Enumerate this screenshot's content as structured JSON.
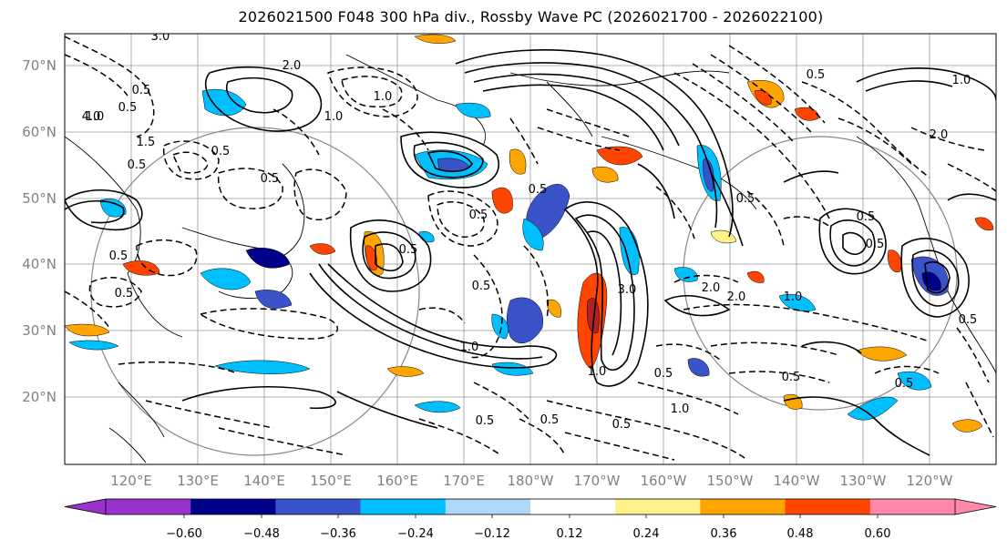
{
  "title": "2026021500 F048 300 hPa div., Rossby Wave PC (2026021700 - 2026022100)",
  "lat_ticks": [
    "70°N",
    "60°N",
    "50°N",
    "40°N",
    "30°N",
    "20°N"
  ],
  "lon_ticks": [
    "120°E",
    "130°E",
    "140°E",
    "150°E",
    "160°E",
    "170°E",
    "180°W",
    "170°W",
    "160°W",
    "150°W",
    "140°W",
    "130°W",
    "120°W"
  ],
  "map_extent": {
    "lon_min": 113,
    "lon_max": 253,
    "lat_min": 10,
    "lat_max": 75
  },
  "colorbar": {
    "bins": [
      {
        "color": "#9932cc"
      },
      {
        "color": "#00008b"
      },
      {
        "color": "#3a53c8"
      },
      {
        "color": "#00bfff"
      },
      {
        "color": "#add8fa"
      },
      {
        "color": "#ffffff"
      },
      {
        "color": "#fff08a"
      },
      {
        "color": "#ffa500"
      },
      {
        "color": "#ff4500"
      },
      {
        "color": "#b22222"
      },
      {
        "color": "#ff88aa"
      }
    ],
    "labels": [
      "−0.60",
      "−0.48",
      "−0.36",
      "−0.24",
      "−0.12",
      "0.12",
      "0.24",
      "0.36",
      "0.48",
      "0.60"
    ]
  },
  "contour_labels": [
    "3.0",
    "0.5",
    "0.5",
    "1.0",
    "0.5",
    "2.0",
    "1.0",
    "4.0",
    "1.5",
    "0.5",
    "0.5",
    "0.5",
    "0.5",
    "1.0",
    "0.5",
    "3.0",
    "1.0",
    "0.5",
    "0.5",
    "0.5",
    "0.5",
    "0.5",
    "0.5",
    "0.5",
    "1.0",
    "2.0",
    "1.0",
    "0.5",
    "0.5",
    "2.0",
    "1.0",
    "0.5",
    "0.5",
    "0.5",
    "0.5",
    "2.0",
    "0.5",
    "1.0"
  ]
}
